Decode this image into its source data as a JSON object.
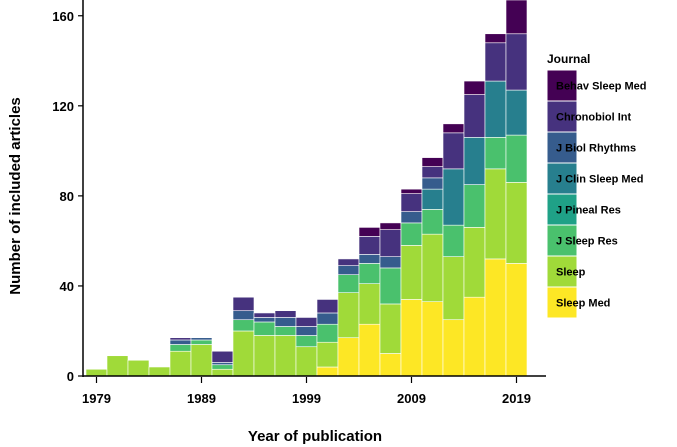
{
  "chart_data": {
    "type": "bar",
    "stacked": true,
    "xlabel": "Year of publication",
    "ylabel": "Number of included articles",
    "ylim": [
      0,
      167
    ],
    "yticks": [
      0,
      40,
      80,
      120,
      160
    ],
    "xticks": [
      1979,
      1989,
      1999,
      2009,
      2019
    ],
    "legend_title": "Journal",
    "legend_position": "right",
    "years": [
      1979,
      1981,
      1983,
      1985,
      1987,
      1989,
      1991,
      1993,
      1995,
      1997,
      1999,
      2001,
      2003,
      2005,
      2007,
      2009,
      2011,
      2013,
      2015,
      2017,
      2019
    ],
    "series": [
      {
        "name": "Sleep Med",
        "color": "#FDE725",
        "values": [
          0,
          0,
          0,
          0,
          0,
          0,
          0,
          0,
          0,
          0,
          0,
          4,
          17,
          23,
          10,
          34,
          33,
          25,
          35,
          52,
          50
        ]
      },
      {
        "name": "Sleep",
        "color": "#A0DA39",
        "values": [
          3,
          9,
          7,
          4,
          11,
          14,
          3,
          20,
          18,
          18,
          13,
          11,
          20,
          18,
          22,
          24,
          30,
          28,
          31,
          40,
          36
        ]
      },
      {
        "name": "J Sleep Res",
        "color": "#4AC16D",
        "values": [
          0,
          0,
          0,
          0,
          3,
          2,
          2,
          5,
          6,
          4,
          5,
          8,
          8,
          9,
          16,
          10,
          11,
          14,
          19,
          14,
          21
        ]
      },
      {
        "name": "J Pineal Res",
        "color": "#1FA187",
        "values": [
          0,
          0,
          0,
          0,
          0,
          0,
          0,
          0,
          0,
          0,
          0,
          0,
          0,
          0,
          0,
          0,
          0,
          0,
          0,
          0,
          0
        ]
      },
      {
        "name": "J Clin Sleep Med",
        "color": "#277F8E",
        "values": [
          0,
          0,
          0,
          0,
          0,
          0,
          0,
          0,
          0,
          0,
          0,
          0,
          0,
          0,
          0,
          0,
          9,
          25,
          21,
          25,
          20
        ]
      },
      {
        "name": "J Biol Rhythms",
        "color": "#365C8D",
        "values": [
          0,
          0,
          0,
          0,
          2,
          1,
          1,
          4,
          2,
          4,
          4,
          5,
          4,
          4,
          5,
          5,
          5,
          0,
          0,
          0,
          0
        ]
      },
      {
        "name": "Chronobiol Int",
        "color": "#46327E",
        "values": [
          0,
          0,
          0,
          0,
          1,
          0,
          5,
          6,
          2,
          3,
          4,
          6,
          3,
          8,
          12,
          8,
          5,
          16,
          19,
          17,
          25
        ]
      },
      {
        "name": "Behav Sleep Med",
        "color": "#440154",
        "values": [
          0,
          0,
          0,
          0,
          0,
          0,
          0,
          0,
          0,
          0,
          0,
          0,
          0,
          4,
          3,
          2,
          4,
          4,
          6,
          4,
          15
        ]
      }
    ],
    "legend_order": [
      "Behav Sleep Med",
      "Chronobiol Int",
      "J Biol Rhythms",
      "J Clin Sleep Med",
      "J Pineal Res",
      "J Sleep Res",
      "Sleep",
      "Sleep Med"
    ]
  }
}
